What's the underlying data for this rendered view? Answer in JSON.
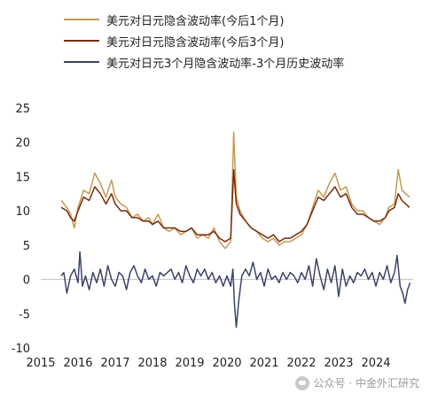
{
  "legend": [
    {
      "label": "美元对日元隐含波动率(今后1个月)",
      "color": "#C49A52"
    },
    {
      "label": "美元对日元隐含波动率(今后3个月)",
      "color": "#7B2A0C"
    },
    {
      "label": "美元对日元3个月隐含波动率-3个月历史波动率",
      "color": "#3A4469"
    }
  ],
  "watermark": {
    "text": "公众号 · 中金外汇研究",
    "icon": "wechat-icon"
  },
  "chart_data": {
    "type": "line",
    "x_axis": {
      "min": 2015,
      "max": 2025,
      "ticks": [
        "2015",
        "2016",
        "2017",
        "2018",
        "2019",
        "2020",
        "2021",
        "2022",
        "2023",
        "2024"
      ]
    },
    "y_axis": {
      "min": -10,
      "max": 25,
      "ticks": [
        -10,
        -5,
        0,
        5,
        10,
        15,
        20,
        25
      ]
    },
    "grid": false,
    "legend_position": "top-left",
    "series": [
      {
        "name": "美元对日元隐含波动率(今后1个月)",
        "color": "#C49A52",
        "points": [
          [
            2015.55,
            11.5
          ],
          [
            2015.7,
            10.5
          ],
          [
            2015.8,
            9.5
          ],
          [
            2015.9,
            7.5
          ],
          [
            2016.0,
            10.5
          ],
          [
            2016.15,
            13.0
          ],
          [
            2016.3,
            12.5
          ],
          [
            2016.45,
            15.5
          ],
          [
            2016.6,
            14.0
          ],
          [
            2016.75,
            12.0
          ],
          [
            2016.9,
            14.5
          ],
          [
            2017.0,
            12.0
          ],
          [
            2017.15,
            11.0
          ],
          [
            2017.3,
            10.5
          ],
          [
            2017.45,
            9.0
          ],
          [
            2017.6,
            9.5
          ],
          [
            2017.75,
            8.5
          ],
          [
            2017.9,
            9.0
          ],
          [
            2018.0,
            8.0
          ],
          [
            2018.15,
            9.5
          ],
          [
            2018.3,
            7.5
          ],
          [
            2018.45,
            7.0
          ],
          [
            2018.6,
            7.5
          ],
          [
            2018.75,
            6.5
          ],
          [
            2018.9,
            7.0
          ],
          [
            2019.05,
            7.5
          ],
          [
            2019.2,
            6.0
          ],
          [
            2019.35,
            6.5
          ],
          [
            2019.5,
            6.0
          ],
          [
            2019.65,
            7.5
          ],
          [
            2019.8,
            5.5
          ],
          [
            2019.95,
            4.5
          ],
          [
            2020.1,
            5.5
          ],
          [
            2020.18,
            21.5
          ],
          [
            2020.25,
            12.0
          ],
          [
            2020.35,
            10.0
          ],
          [
            2020.5,
            8.5
          ],
          [
            2020.65,
            7.5
          ],
          [
            2020.8,
            7.0
          ],
          [
            2020.95,
            6.0
          ],
          [
            2021.1,
            5.5
          ],
          [
            2021.25,
            6.0
          ],
          [
            2021.4,
            5.0
          ],
          [
            2021.55,
            5.5
          ],
          [
            2021.7,
            5.5
          ],
          [
            2021.85,
            6.0
          ],
          [
            2022.0,
            6.5
          ],
          [
            2022.15,
            8.0
          ],
          [
            2022.3,
            10.5
          ],
          [
            2022.45,
            13.0
          ],
          [
            2022.6,
            12.0
          ],
          [
            2022.75,
            14.0
          ],
          [
            2022.9,
            15.5
          ],
          [
            2023.05,
            13.0
          ],
          [
            2023.2,
            13.5
          ],
          [
            2023.35,
            11.0
          ],
          [
            2023.5,
            10.0
          ],
          [
            2023.65,
            10.0
          ],
          [
            2023.8,
            9.0
          ],
          [
            2023.95,
            8.5
          ],
          [
            2024.1,
            8.0
          ],
          [
            2024.25,
            9.0
          ],
          [
            2024.35,
            10.5
          ],
          [
            2024.5,
            11.0
          ],
          [
            2024.6,
            16.0
          ],
          [
            2024.7,
            13.0
          ],
          [
            2024.8,
            12.5
          ],
          [
            2024.9,
            12.0
          ]
        ]
      },
      {
        "name": "美元对日元隐含波动率(今后3个月)",
        "color": "#7B2A0C",
        "points": [
          [
            2015.55,
            10.5
          ],
          [
            2015.7,
            10.0
          ],
          [
            2015.8,
            9.0
          ],
          [
            2015.9,
            8.5
          ],
          [
            2016.0,
            10.0
          ],
          [
            2016.15,
            12.0
          ],
          [
            2016.3,
            11.5
          ],
          [
            2016.45,
            13.5
          ],
          [
            2016.6,
            12.5
          ],
          [
            2016.75,
            11.0
          ],
          [
            2016.9,
            12.5
          ],
          [
            2017.0,
            11.0
          ],
          [
            2017.15,
            10.0
          ],
          [
            2017.3,
            10.0
          ],
          [
            2017.45,
            9.0
          ],
          [
            2017.6,
            9.0
          ],
          [
            2017.75,
            8.5
          ],
          [
            2017.9,
            8.5
          ],
          [
            2018.0,
            8.0
          ],
          [
            2018.15,
            8.5
          ],
          [
            2018.3,
            7.5
          ],
          [
            2018.45,
            7.5
          ],
          [
            2018.6,
            7.5
          ],
          [
            2018.75,
            7.0
          ],
          [
            2018.9,
            7.0
          ],
          [
            2019.05,
            7.5
          ],
          [
            2019.2,
            6.5
          ],
          [
            2019.35,
            6.5
          ],
          [
            2019.5,
            6.5
          ],
          [
            2019.65,
            7.0
          ],
          [
            2019.8,
            6.0
          ],
          [
            2019.95,
            5.5
          ],
          [
            2020.1,
            6.0
          ],
          [
            2020.18,
            16.0
          ],
          [
            2020.25,
            11.0
          ],
          [
            2020.35,
            9.5
          ],
          [
            2020.5,
            8.5
          ],
          [
            2020.65,
            7.5
          ],
          [
            2020.8,
            7.0
          ],
          [
            2020.95,
            6.5
          ],
          [
            2021.1,
            6.0
          ],
          [
            2021.25,
            6.5
          ],
          [
            2021.4,
            5.5
          ],
          [
            2021.55,
            6.0
          ],
          [
            2021.7,
            6.0
          ],
          [
            2021.85,
            6.5
          ],
          [
            2022.0,
            7.0
          ],
          [
            2022.15,
            8.0
          ],
          [
            2022.3,
            10.0
          ],
          [
            2022.45,
            12.0
          ],
          [
            2022.6,
            11.5
          ],
          [
            2022.75,
            12.5
          ],
          [
            2022.9,
            13.5
          ],
          [
            2023.05,
            12.0
          ],
          [
            2023.2,
            12.5
          ],
          [
            2023.35,
            10.5
          ],
          [
            2023.5,
            9.5
          ],
          [
            2023.65,
            9.5
          ],
          [
            2023.8,
            9.0
          ],
          [
            2023.95,
            8.5
          ],
          [
            2024.1,
            8.5
          ],
          [
            2024.25,
            9.0
          ],
          [
            2024.35,
            10.0
          ],
          [
            2024.5,
            10.5
          ],
          [
            2024.6,
            12.5
          ],
          [
            2024.7,
            11.5
          ],
          [
            2024.8,
            11.0
          ],
          [
            2024.9,
            10.5
          ]
        ]
      },
      {
        "name": "美元对日元3个月隐含波动率-3个月历史波动率",
        "color": "#3A4469",
        "points": [
          [
            2015.55,
            0.5
          ],
          [
            2015.62,
            1.0
          ],
          [
            2015.7,
            -2.0
          ],
          [
            2015.8,
            0.5
          ],
          [
            2015.9,
            1.5
          ],
          [
            2016.0,
            -0.5
          ],
          [
            2016.05,
            4.0
          ],
          [
            2016.12,
            -1.0
          ],
          [
            2016.2,
            0.5
          ],
          [
            2016.3,
            -1.5
          ],
          [
            2016.4,
            1.0
          ],
          [
            2016.5,
            -0.5
          ],
          [
            2016.6,
            1.5
          ],
          [
            2016.7,
            -1.0
          ],
          [
            2016.8,
            2.0
          ],
          [
            2016.9,
            0.0
          ],
          [
            2017.0,
            -1.0
          ],
          [
            2017.1,
            1.0
          ],
          [
            2017.2,
            0.5
          ],
          [
            2017.3,
            -1.5
          ],
          [
            2017.4,
            1.0
          ],
          [
            2017.5,
            2.0
          ],
          [
            2017.6,
            0.5
          ],
          [
            2017.7,
            -0.5
          ],
          [
            2017.8,
            1.5
          ],
          [
            2017.9,
            0.0
          ],
          [
            2018.0,
            0.5
          ],
          [
            2018.1,
            -1.0
          ],
          [
            2018.2,
            1.0
          ],
          [
            2018.3,
            0.5
          ],
          [
            2018.4,
            1.0
          ],
          [
            2018.5,
            1.5
          ],
          [
            2018.6,
            0.0
          ],
          [
            2018.7,
            1.0
          ],
          [
            2018.8,
            -0.5
          ],
          [
            2018.9,
            2.0
          ],
          [
            2019.0,
            0.5
          ],
          [
            2019.1,
            -0.5
          ],
          [
            2019.2,
            1.5
          ],
          [
            2019.3,
            0.5
          ],
          [
            2019.4,
            1.5
          ],
          [
            2019.5,
            0.0
          ],
          [
            2019.6,
            1.0
          ],
          [
            2019.7,
            -0.5
          ],
          [
            2019.8,
            0.5
          ],
          [
            2019.9,
            -1.0
          ],
          [
            2020.0,
            0.5
          ],
          [
            2020.1,
            -1.0
          ],
          [
            2020.16,
            1.5
          ],
          [
            2020.2,
            -3.5
          ],
          [
            2020.25,
            -7.0
          ],
          [
            2020.32,
            -3.0
          ],
          [
            2020.4,
            0.5
          ],
          [
            2020.5,
            1.5
          ],
          [
            2020.6,
            0.5
          ],
          [
            2020.7,
            2.5
          ],
          [
            2020.8,
            0.0
          ],
          [
            2020.9,
            1.0
          ],
          [
            2021.0,
            -1.0
          ],
          [
            2021.1,
            1.5
          ],
          [
            2021.2,
            0.0
          ],
          [
            2021.3,
            0.5
          ],
          [
            2021.4,
            -0.5
          ],
          [
            2021.5,
            1.0
          ],
          [
            2021.6,
            0.0
          ],
          [
            2021.7,
            1.0
          ],
          [
            2021.8,
            0.5
          ],
          [
            2021.9,
            -0.5
          ],
          [
            2022.0,
            1.0
          ],
          [
            2022.1,
            0.0
          ],
          [
            2022.2,
            2.0
          ],
          [
            2022.3,
            -1.0
          ],
          [
            2022.4,
            3.0
          ],
          [
            2022.5,
            0.5
          ],
          [
            2022.6,
            -1.5
          ],
          [
            2022.7,
            1.5
          ],
          [
            2022.8,
            -0.5
          ],
          [
            2022.9,
            2.0
          ],
          [
            2023.0,
            -2.5
          ],
          [
            2023.1,
            1.5
          ],
          [
            2023.2,
            -1.0
          ],
          [
            2023.3,
            0.5
          ],
          [
            2023.4,
            -0.5
          ],
          [
            2023.5,
            1.0
          ],
          [
            2023.6,
            0.5
          ],
          [
            2023.7,
            1.5
          ],
          [
            2023.8,
            0.0
          ],
          [
            2023.9,
            1.0
          ],
          [
            2024.0,
            -1.0
          ],
          [
            2024.1,
            1.0
          ],
          [
            2024.2,
            0.0
          ],
          [
            2024.3,
            2.0
          ],
          [
            2024.4,
            -0.5
          ],
          [
            2024.5,
            1.0
          ],
          [
            2024.57,
            3.5
          ],
          [
            2024.65,
            -1.0
          ],
          [
            2024.72,
            -2.0
          ],
          [
            2024.78,
            -3.5
          ],
          [
            2024.85,
            -1.5
          ],
          [
            2024.92,
            -0.5
          ]
        ]
      }
    ]
  }
}
